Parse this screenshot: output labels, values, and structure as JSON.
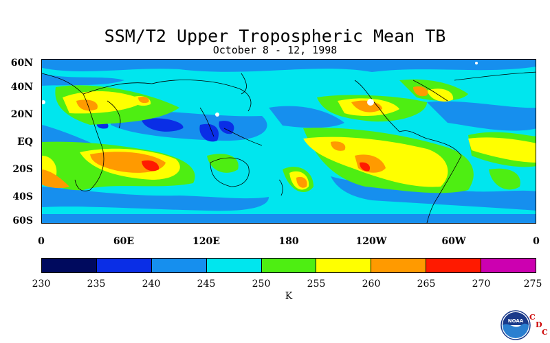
{
  "title": "SSM/T2 Upper Tropospheric Mean TB",
  "subtitle": "October 8 - 12, 1998",
  "lat_labels": [
    "60N",
    "40N",
    "20N",
    "EQ",
    "20S",
    "40S",
    "60S"
  ],
  "lon_labels": [
    "0",
    "60E",
    "120E",
    "180",
    "120W",
    "60W",
    "0"
  ],
  "colorbar": {
    "ticks": [
      "230",
      "235",
      "240",
      "245",
      "250",
      "255",
      "260",
      "265",
      "270",
      "275"
    ],
    "colors": [
      "#000a5e",
      "#0a2ee6",
      "#168fee",
      "#00e6ee",
      "#4eee12",
      "#ffff00",
      "#ff9a00",
      "#ff1a00",
      "#cc00b0"
    ],
    "unit": "K"
  },
  "logo": {
    "icon": "noaa-logo-icon",
    "text": "NOAA",
    "cdc_letters": [
      "C",
      "D",
      "C"
    ]
  }
}
